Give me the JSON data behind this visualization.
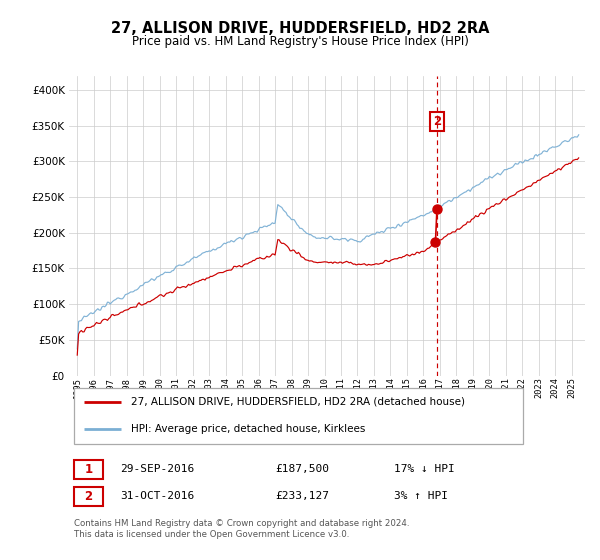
{
  "title": "27, ALLISON DRIVE, HUDDERSFIELD, HD2 2RA",
  "subtitle": "Price paid vs. HM Land Registry's House Price Index (HPI)",
  "legend_line1": "27, ALLISON DRIVE, HUDDERSFIELD, HD2 2RA (detached house)",
  "legend_line2": "HPI: Average price, detached house, Kirklees",
  "hpi_color": "#7bafd4",
  "price_color": "#cc0000",
  "marker_color": "#cc0000",
  "annotation_box_color": "#cc0000",
  "dashed_line_color": "#cc0000",
  "grid_color": "#cccccc",
  "background_color": "#ffffff",
  "ylim": [
    0,
    420000
  ],
  "yticks": [
    0,
    50000,
    100000,
    150000,
    200000,
    250000,
    300000,
    350000,
    400000
  ],
  "footer_text": "Contains HM Land Registry data © Crown copyright and database right 2024.\nThis data is licensed under the Open Government Licence v3.0.",
  "transaction1_num": "1",
  "transaction1_date": "29-SEP-2016",
  "transaction1_price": "£187,500",
  "transaction1_hpi": "17% ↓ HPI",
  "transaction2_num": "2",
  "transaction2_date": "31-OCT-2016",
  "transaction2_price": "£233,127",
  "transaction2_hpi": "3% ↑ HPI",
  "marker1_x_year": 2016.73,
  "marker1_y": 187500,
  "marker2_x_year": 2016.82,
  "marker2_y": 233127,
  "xlim_left": 1994.5,
  "xlim_right": 2025.8
}
